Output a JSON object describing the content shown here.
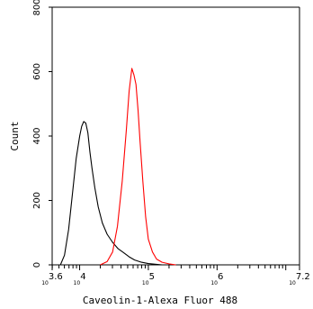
{
  "chart_data": {
    "type": "line",
    "xlabel": "Caveolin-1-Alexa Fluor 488",
    "ylabel": "Count",
    "x_scale": "log10",
    "xlim": [
      3.6,
      7.2
    ],
    "ylim": [
      0,
      800
    ],
    "y_ticks": [
      0,
      200,
      400,
      600,
      800
    ],
    "y_tick_labels": [
      "0",
      "200",
      "400",
      "600",
      "800"
    ],
    "x_ticks": [
      3.6,
      4,
      5,
      6,
      7.2
    ],
    "x_tick_labels": [
      {
        "base": "10",
        "exp": "3.6"
      },
      {
        "base": "10",
        "exp": "4"
      },
      {
        "base": "10",
        "exp": "5"
      },
      {
        "base": "10",
        "exp": "6"
      },
      {
        "base": "10",
        "exp": "7.2"
      }
    ],
    "grid": false,
    "legend": "none",
    "series": [
      {
        "color": "#000000",
        "x": [
          3.72,
          3.78,
          3.84,
          3.9,
          3.95,
          4.0,
          4.03,
          4.06,
          4.09,
          4.12,
          4.15,
          4.18,
          4.22,
          4.27,
          4.33,
          4.4,
          4.48,
          4.56,
          4.64,
          4.72,
          4.8,
          4.9,
          5.0,
          5.1,
          5.2
        ],
        "y": [
          0,
          30,
          110,
          230,
          330,
          400,
          430,
          445,
          440,
          410,
          350,
          300,
          240,
          180,
          130,
          95,
          70,
          50,
          38,
          25,
          15,
          8,
          4,
          2,
          0
        ]
      },
      {
        "color": "#ff0000",
        "x": [
          4.3,
          4.4,
          4.48,
          4.55,
          4.62,
          4.68,
          4.72,
          4.76,
          4.79,
          4.82,
          4.85,
          4.88,
          4.92,
          4.96,
          5.0,
          5.06,
          5.12,
          5.2,
          5.3,
          5.4
        ],
        "y": [
          0,
          10,
          40,
          120,
          260,
          420,
          540,
          610,
          590,
          560,
          480,
          380,
          260,
          150,
          80,
          40,
          18,
          8,
          3,
          0
        ]
      }
    ]
  }
}
